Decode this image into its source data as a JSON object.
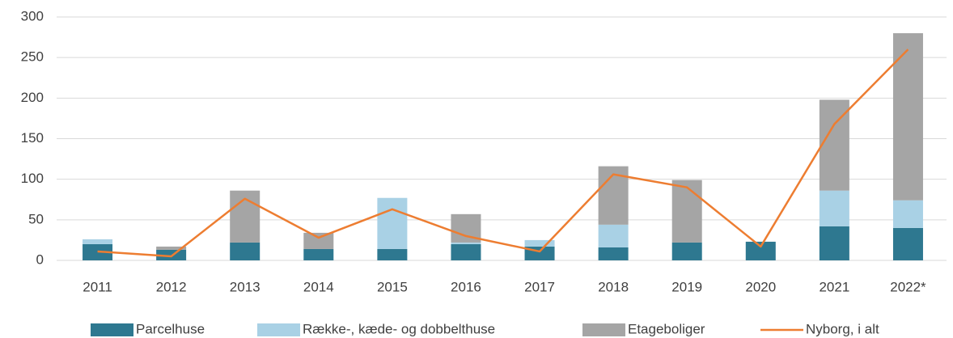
{
  "chart_data": {
    "type": "bar",
    "stacked": true,
    "categories": [
      "2011",
      "2012",
      "2013",
      "2014",
      "2015",
      "2016",
      "2017",
      "2018",
      "2019",
      "2020",
      "2021",
      "2022*"
    ],
    "series": [
      {
        "name": "Parcelhuse",
        "color": "#2e7890",
        "values": [
          20,
          13,
          22,
          14,
          14,
          20,
          17,
          16,
          22,
          23,
          42,
          40
        ]
      },
      {
        "name": "Række-, kæde- og dobbelthuse",
        "color": "#a9d1e5",
        "values": [
          6,
          0,
          0,
          0,
          63,
          2,
          8,
          28,
          0,
          0,
          44,
          34
        ]
      },
      {
        "name": "Etageboliger",
        "color": "#a5a5a5",
        "values": [
          0,
          4,
          64,
          20,
          0,
          35,
          0,
          72,
          77,
          0,
          112,
          206
        ]
      },
      {
        "name": "Nyborg, i alt",
        "color": "#ed7d31",
        "type": "line",
        "values": [
          11,
          5,
          76,
          28,
          63,
          30,
          11,
          106,
          90,
          17,
          168,
          260
        ]
      }
    ],
    "ylim": [
      0,
      300
    ],
    "yticks": [
      0,
      50,
      100,
      150,
      200,
      250,
      300
    ],
    "grid": true,
    "legend": "bottom"
  }
}
